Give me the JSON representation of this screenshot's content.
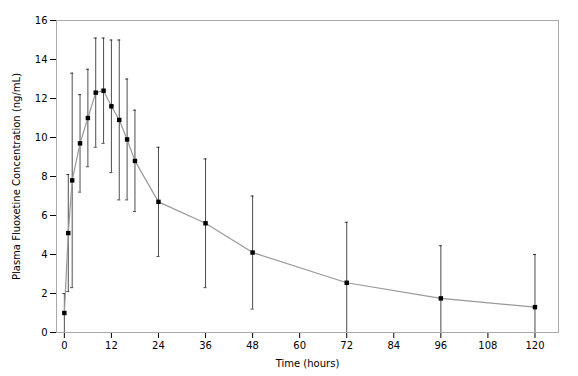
{
  "chart_data": {
    "type": "line",
    "xlabel": "Time (hours)",
    "ylabel": "Plasma Fluoxetine Concentration (ng/mL)",
    "x": [
      0,
      1,
      2,
      4,
      6,
      8,
      10,
      12,
      14,
      16,
      18,
      24,
      36,
      48,
      72,
      96,
      120
    ],
    "values": [
      1.0,
      5.1,
      7.8,
      9.7,
      11.0,
      12.3,
      12.4,
      11.6,
      10.9,
      9.9,
      8.8,
      6.7,
      5.6,
      4.1,
      2.55,
      1.75,
      1.3
    ],
    "error_upper": [
      1.0,
      3.0,
      5.5,
      2.5,
      2.5,
      2.8,
      2.7,
      3.4,
      4.1,
      3.1,
      2.6,
      2.8,
      3.3,
      2.9,
      3.1,
      2.7,
      2.7
    ],
    "error_lower": [
      1.0,
      3.0,
      5.5,
      2.5,
      2.5,
      2.8,
      2.7,
      3.4,
      4.1,
      3.1,
      2.6,
      2.8,
      3.3,
      2.9,
      2.55,
      1.75,
      1.3
    ],
    "color": "#999999",
    "marker": "square",
    "xlim": [
      -2,
      126
    ],
    "ylim": [
      0,
      16
    ],
    "xticks": [
      0,
      12,
      24,
      36,
      48,
      60,
      72,
      84,
      96,
      108,
      120
    ],
    "yticks": [
      0,
      2,
      4,
      6,
      8,
      10,
      12,
      14,
      16
    ],
    "grid": false
  }
}
